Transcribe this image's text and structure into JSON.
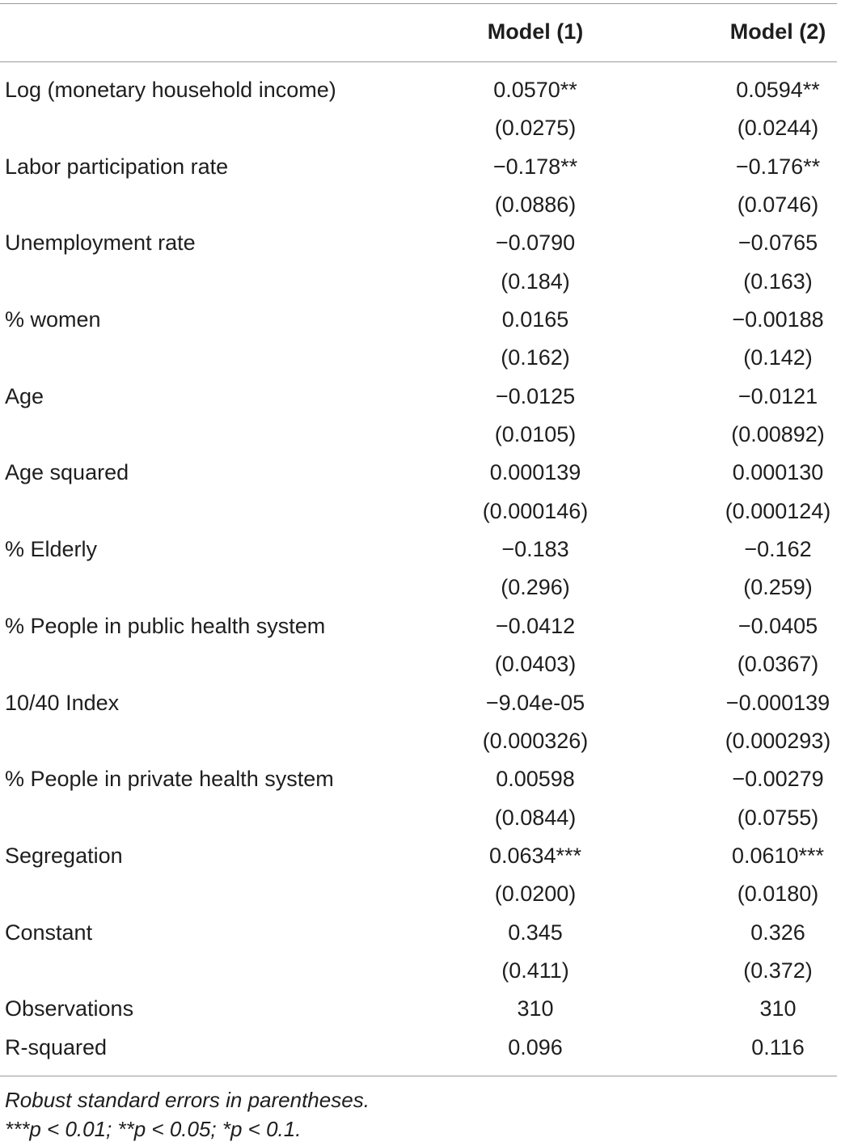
{
  "table": {
    "columns": [
      "Model (1)",
      "Model (2)"
    ],
    "rows": [
      {
        "label": "Log (monetary household income)",
        "m1": "0.0570**",
        "se1": "(0.0275)",
        "m2": "0.0594**",
        "se2": "(0.0244)"
      },
      {
        "label": "Labor participation rate",
        "m1": "−0.178**",
        "se1": "(0.0886)",
        "m2": "−0.176**",
        "se2": "(0.0746)"
      },
      {
        "label": "Unemployment rate",
        "m1": "−0.0790",
        "se1": "(0.184)",
        "m2": "−0.0765",
        "se2": "(0.163)"
      },
      {
        "label": "% women",
        "m1": "0.0165",
        "se1": "(0.162)",
        "m2": "−0.00188",
        "se2": "(0.142)"
      },
      {
        "label": "Age",
        "m1": "−0.0125",
        "se1": "(0.0105)",
        "m2": "−0.0121",
        "se2": "(0.00892)"
      },
      {
        "label": "Age squared",
        "m1": "0.000139",
        "se1": "(0.000146)",
        "m2": "0.000130",
        "se2": "(0.000124)"
      },
      {
        "label": "% Elderly",
        "m1": "−0.183",
        "se1": "(0.296)",
        "m2": "−0.162",
        "se2": "(0.259)"
      },
      {
        "label": "% People in public health system",
        "m1": "−0.0412",
        "se1": "(0.0403)",
        "m2": "−0.0405",
        "se2": "(0.0367)"
      },
      {
        "label": "10/40 Index",
        "m1": "−9.04e-05",
        "se1": "(0.000326)",
        "m2": "−0.000139",
        "se2": "(0.000293)"
      },
      {
        "label": "% People in private health system",
        "m1": "0.00598",
        "se1": "(0.0844)",
        "m2": "−0.00279",
        "se2": "(0.0755)"
      },
      {
        "label": "Segregation",
        "m1": "0.0634***",
        "se1": "(0.0200)",
        "m2": "0.0610***",
        "se2": "(0.0180)"
      },
      {
        "label": "Constant",
        "m1": "0.345",
        "se1": "(0.411)",
        "m2": "0.326",
        "se2": "(0.372)"
      }
    ],
    "summary_rows": [
      {
        "label": "Observations",
        "m1": "310",
        "m2": "310"
      },
      {
        "label": "R-squared",
        "m1": "0.096",
        "m2": "0.116"
      }
    ]
  },
  "footnotes": [
    "Robust standard errors in parentheses.",
    "***p < 0.01; **p < 0.05; *p < 0.1."
  ]
}
